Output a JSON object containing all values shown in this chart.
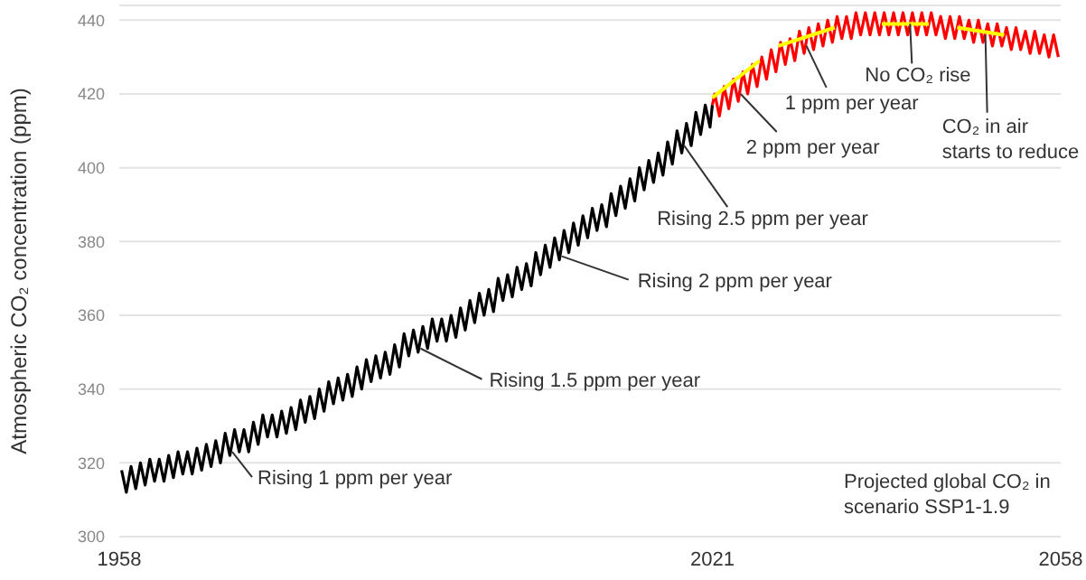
{
  "chart_data": {
    "type": "line",
    "ylabel": "Atmospheric CO₂ concentration (ppm)",
    "xlim": [
      1958,
      2058
    ],
    "xticks": [
      1958,
      2021,
      2058
    ],
    "ylim": [
      300,
      444
    ],
    "yticks": [
      300,
      320,
      340,
      360,
      380,
      400,
      420,
      440
    ],
    "grid": "y",
    "legend": false,
    "marker": "none",
    "line_style": "solid",
    "series": [
      {
        "color": "#000000",
        "x": [
          1958.25,
          1958.75,
          1959.25,
          1959.75,
          1960.25,
          1960.75,
          1961.25,
          1961.75,
          1962.25,
          1962.75,
          1963.25,
          1963.75,
          1964.25,
          1964.75,
          1965.25,
          1965.75,
          1966.25,
          1966.75,
          1967.25,
          1967.75,
          1968.25,
          1968.75,
          1969.25,
          1969.75,
          1970.25,
          1970.75,
          1971.25,
          1971.75,
          1972.25,
          1972.75,
          1973.25,
          1973.75,
          1974.25,
          1974.75,
          1975.25,
          1975.75,
          1976.25,
          1976.75,
          1977.25,
          1977.75,
          1978.25,
          1978.75,
          1979.25,
          1979.75,
          1980.25,
          1980.75,
          1981.25,
          1981.75,
          1982.25,
          1982.75,
          1983.25,
          1983.75,
          1984.25,
          1984.75,
          1985.25,
          1985.75,
          1986.25,
          1986.75,
          1987.25,
          1987.75,
          1988.25,
          1988.75,
          1989.25,
          1989.75,
          1990.25,
          1990.75,
          1991.25,
          1991.75,
          1992.25,
          1992.75,
          1993.25,
          1993.75,
          1994.25,
          1994.75,
          1995.25,
          1995.75,
          1996.25,
          1996.75,
          1997.25,
          1997.75,
          1998.25,
          1998.75,
          1999.25,
          1999.75,
          2000.25,
          2000.75,
          2001.25,
          2001.75,
          2002.25,
          2002.75,
          2003.25,
          2003.75,
          2004.25,
          2004.75,
          2005.25,
          2005.75,
          2006.25,
          2006.75,
          2007.25,
          2007.75,
          2008.25,
          2008.75,
          2009.25,
          2009.75,
          2010.25,
          2010.75,
          2011.25,
          2011.75,
          2012.25,
          2012.75,
          2013.25,
          2013.75,
          2014.25,
          2014.75,
          2015.25,
          2015.75,
          2016.25,
          2016.75,
          2017.25,
          2017.75,
          2018.25,
          2018.75,
          2019.25,
          2019.75,
          2020.25,
          2020.75,
          2021
        ],
        "values": [
          318,
          312,
          319,
          313,
          320,
          314,
          321,
          315,
          321,
          315,
          322,
          316,
          323,
          317,
          323,
          317,
          324,
          318,
          325,
          319,
          326,
          320,
          328,
          322,
          329,
          323,
          329,
          323,
          331,
          325,
          333,
          327,
          333,
          327,
          334,
          328,
          335,
          329,
          337,
          331,
          338,
          332,
          340,
          334,
          342,
          336,
          343,
          337,
          344,
          338,
          346,
          340,
          348,
          342,
          349,
          343,
          350,
          344,
          352,
          346,
          355,
          349,
          356,
          350,
          357,
          351,
          359,
          353,
          359,
          353,
          360,
          354,
          362,
          356,
          364,
          358,
          366,
          360,
          367,
          361,
          370,
          364,
          371,
          365,
          373,
          367,
          374,
          368,
          377,
          371,
          379,
          373,
          381,
          375,
          383,
          377,
          385,
          379,
          387,
          381,
          389,
          383,
          390,
          384,
          393,
          387,
          395,
          389,
          397,
          391,
          400,
          394,
          402,
          396,
          404,
          398,
          407,
          401,
          410,
          404,
          412,
          406,
          415,
          409,
          417,
          411,
          417
        ]
      },
      {
        "color": "#ff0000",
        "x": [
          2021,
          2021.25,
          2021.75,
          2022.25,
          2022.75,
          2023.25,
          2023.75,
          2024.25,
          2024.75,
          2025.25,
          2025.75,
          2026.25,
          2026.75,
          2027.25,
          2027.75,
          2028.25,
          2028.75,
          2029.25,
          2029.75,
          2030.25,
          2030.75,
          2031.25,
          2031.75,
          2032.25,
          2032.75,
          2033.25,
          2033.75,
          2034.25,
          2034.75,
          2035.25,
          2035.75,
          2036.25,
          2036.75,
          2037.25,
          2037.75,
          2038.25,
          2038.75,
          2039.25,
          2039.75,
          2040.25,
          2040.75,
          2041.25,
          2041.75,
          2042.25,
          2042.75,
          2043.25,
          2043.75,
          2044.25,
          2044.75,
          2045.25,
          2045.75,
          2046.25,
          2046.75,
          2047.25,
          2047.75,
          2048.25,
          2048.75,
          2049.25,
          2049.75,
          2050.25,
          2050.75,
          2051.25,
          2051.75,
          2052.25,
          2052.75,
          2053.25,
          2053.75,
          2054.25,
          2054.75,
          2055.25,
          2055.75,
          2056.25,
          2056.75,
          2057.25,
          2057.75
        ],
        "values": [
          417,
          420,
          414,
          422,
          416,
          424,
          418,
          426,
          420,
          428,
          422,
          430,
          424,
          432,
          426,
          434,
          428,
          435,
          429,
          437,
          431,
          438,
          432,
          439,
          433,
          440,
          434,
          441,
          435,
          441,
          435,
          442,
          436,
          442,
          436,
          442,
          436,
          442,
          436,
          442,
          436,
          442,
          436,
          442,
          436,
          442,
          436,
          442,
          436,
          441,
          435,
          441,
          435,
          441,
          435,
          440,
          434,
          440,
          434,
          439,
          433,
          439,
          433,
          438,
          432,
          438,
          432,
          437,
          431,
          437,
          431,
          436,
          430,
          436,
          430
        ]
      },
      {
        "color": "#ffff00",
        "x": [
          2021,
          2026
        ],
        "values": [
          419,
          429
        ]
      },
      {
        "color": "#ffff00",
        "x": [
          2028,
          2034
        ],
        "values": [
          433,
          438
        ]
      },
      {
        "color": "#ffff00",
        "x": [
          2039,
          2044
        ],
        "values": [
          439,
          439
        ]
      },
      {
        "color": "#ffff00",
        "x": [
          2047,
          2052
        ],
        "values": [
          438,
          436
        ]
      }
    ],
    "annotations": [
      {
        "text": "Rising 1 ppm per year",
        "x": 1970,
        "y": 323
      },
      {
        "text": "Rising 1.5 ppm per year",
        "x": 1990,
        "y": 351
      },
      {
        "text": "Rising 2 ppm per year",
        "x": 2005,
        "y": 376
      },
      {
        "text": "Rising 2.5 ppm per year",
        "x": 2018,
        "y": 406
      },
      {
        "text": "2 ppm per year",
        "x": 2024,
        "y": 420
      },
      {
        "text": "1 ppm per year",
        "x": 2031,
        "y": 433
      },
      {
        "text": "No CO₂ rise",
        "x": 2042,
        "y": 439
      },
      {
        "text": "CO₂ in air starts to reduce",
        "x": 2050,
        "y": 436
      },
      "Projected global CO₂ in scenario SSP1-1.9"
    ]
  }
}
